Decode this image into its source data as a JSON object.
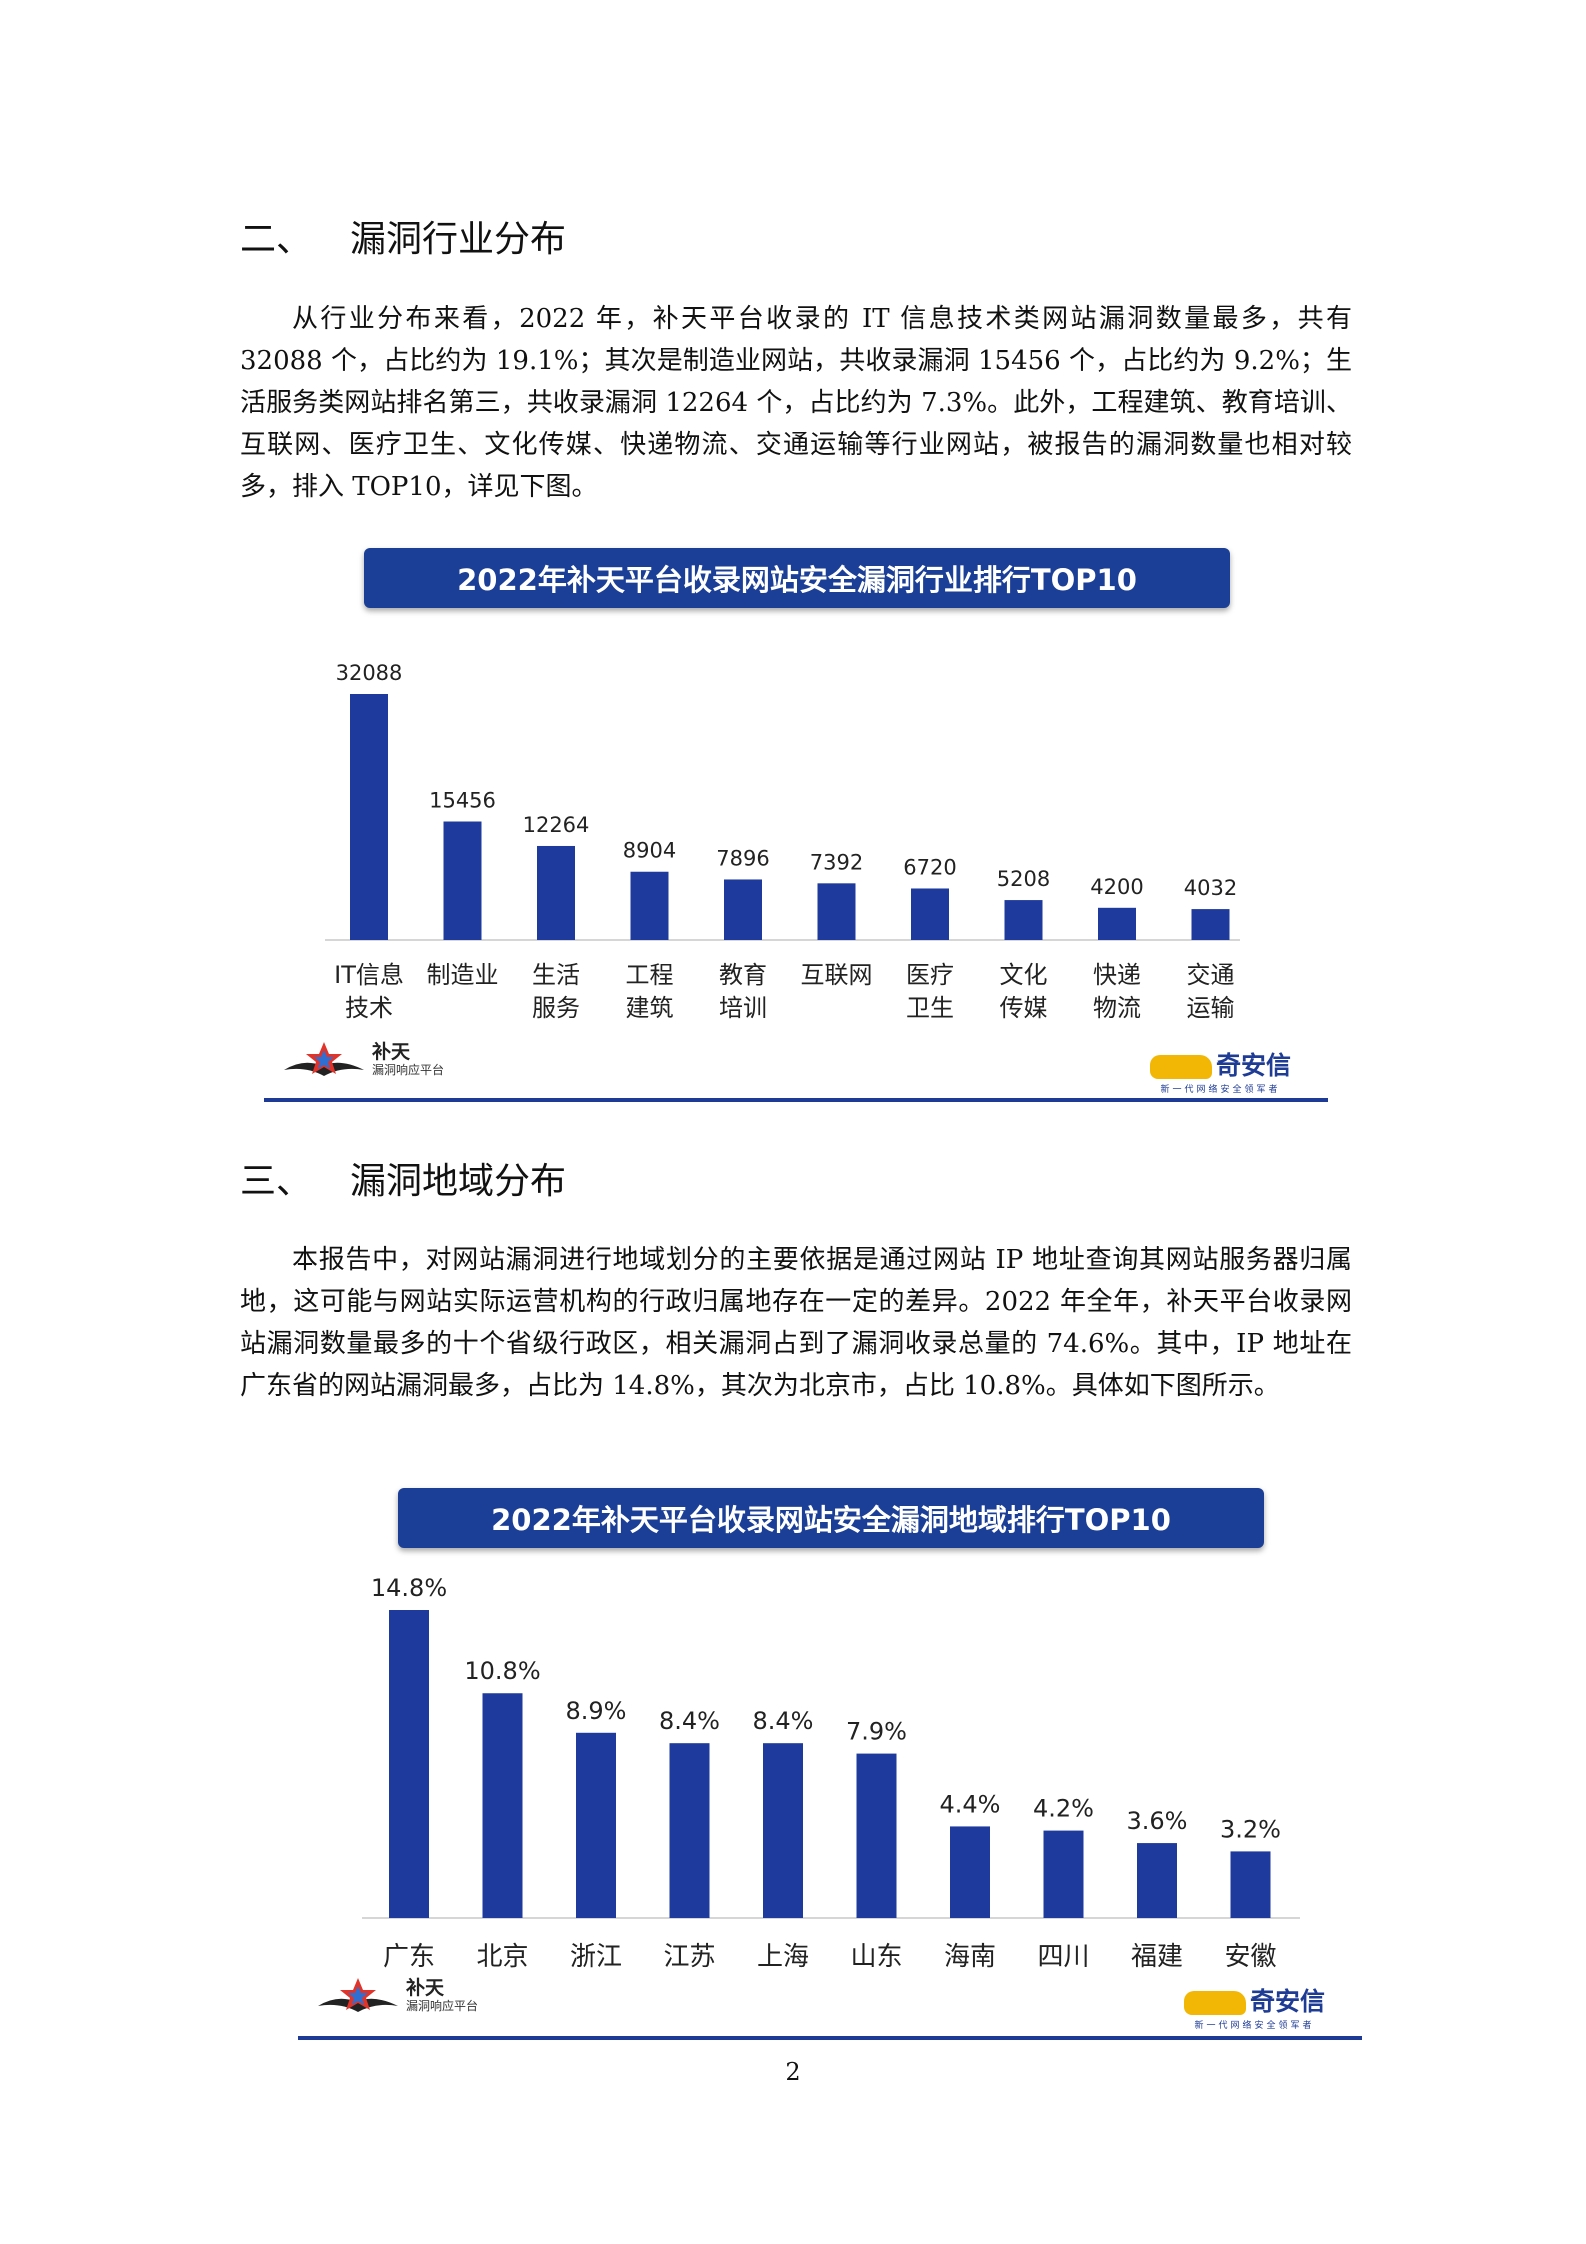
{
  "section2": {
    "num": "二、",
    "title": "漏洞行业分布",
    "paragraph": "从行业分布来看，2022 年，补天平台收录的 IT 信息技术类网站漏洞数量最多，共有 32088 个，占比约为 19.1%；其次是制造业网站，共收录漏洞 15456 个，占比约为 9.2%；生活服务类网站排名第三，共收录漏洞 12264 个，占比约为 7.3%。此外，工程建筑、教育培训、互联网、医疗卫生、文化传媒、快递物流、交通运输等行业网站，被报告的漏洞数量也相对较多，排入 TOP10，详见下图。"
  },
  "section3": {
    "num": "三、",
    "title": "漏洞地域分布",
    "paragraph": "本报告中，对网站漏洞进行地域划分的主要依据是通过网站 IP 地址查询其网站服务器归属地，这可能与网站实际运营机构的行政归属地存在一定的差异。2022 年全年，补天平台收录网站漏洞数量最多的十个省级行政区，相关漏洞占到了漏洞收录总量的 74.6%。其中，IP 地址在广东省的网站漏洞最多，占比为 14.8%，其次为北京市，占比 10.8%。具体如下图所示。"
  },
  "chart_data": [
    {
      "type": "bar",
      "title": "2022年补天平台收录网站安全漏洞行业排行TOP10",
      "categories": [
        [
          "IT信息",
          "技术"
        ],
        [
          "制造业"
        ],
        [
          "生活",
          "服务"
        ],
        [
          "工程",
          "建筑"
        ],
        [
          "教育",
          "培训"
        ],
        [
          "互联网"
        ],
        [
          "医疗",
          "卫生"
        ],
        [
          "文化",
          "传媒"
        ],
        [
          "快递",
          "物流"
        ],
        [
          "交通",
          "运输"
        ]
      ],
      "values": [
        32088,
        15456,
        12264,
        8904,
        7896,
        7392,
        6720,
        5208,
        4200,
        4032
      ],
      "labels": [
        "32088",
        "15456",
        "12264",
        "8904",
        "7896",
        "7392",
        "6720",
        "5208",
        "4200",
        "4032"
      ],
      "ylim": [
        0,
        32088
      ],
      "color": "#1e3a9c",
      "grid": false
    },
    {
      "type": "bar",
      "title": "2022年补天平台收录网站安全漏洞地域排行TOP10",
      "categories": [
        [
          "广东"
        ],
        [
          "北京"
        ],
        [
          "浙江"
        ],
        [
          "江苏"
        ],
        [
          "上海"
        ],
        [
          "山东"
        ],
        [
          "海南"
        ],
        [
          "四川"
        ],
        [
          "福建"
        ],
        [
          "安徽"
        ]
      ],
      "values": [
        14.8,
        10.8,
        8.9,
        8.4,
        8.4,
        7.9,
        4.4,
        4.2,
        3.6,
        3.2
      ],
      "labels": [
        "14.8%",
        "10.8%",
        "8.9%",
        "8.4%",
        "8.4%",
        "7.9%",
        "4.4%",
        "4.2%",
        "3.6%",
        "3.2%"
      ],
      "ylim": [
        0,
        14.8
      ],
      "color": "#1e3a9c",
      "grid": false
    }
  ],
  "logos": {
    "butian_name": "补天",
    "butian_sub": "漏洞响应平台",
    "qianxin_name": "奇安信",
    "qianxin_sub": "新一代网络安全领军者"
  },
  "page_number": "2"
}
